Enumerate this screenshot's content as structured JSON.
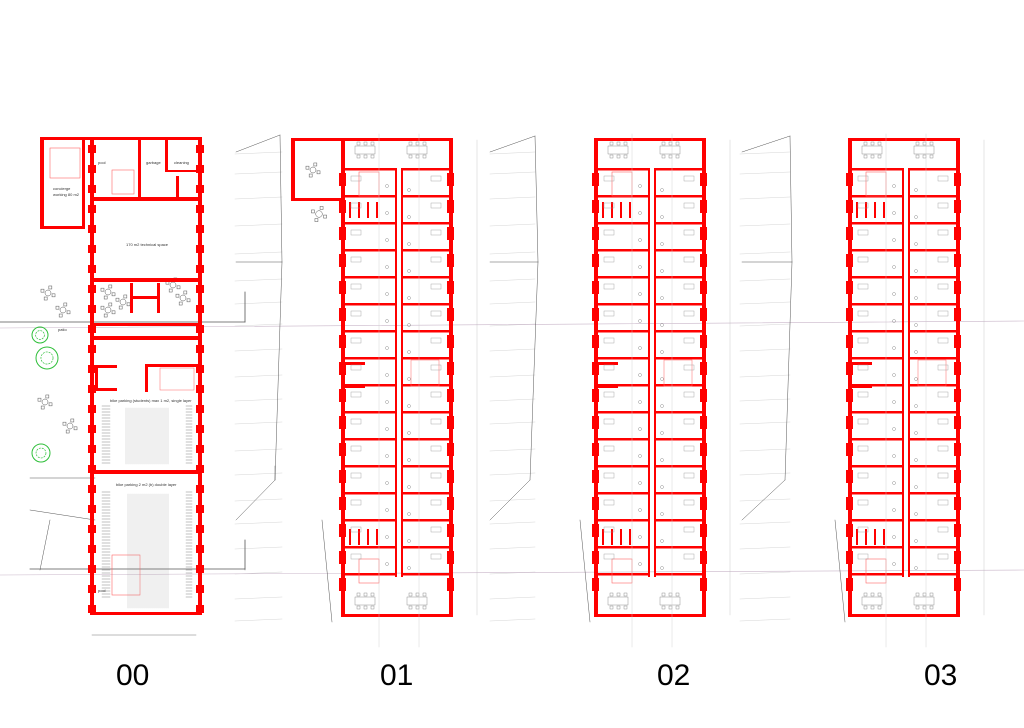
{
  "floors": [
    {
      "label": "00"
    },
    {
      "label": "01"
    },
    {
      "label": "02"
    },
    {
      "label": "03"
    }
  ],
  "ground_floor_rooms": {
    "concierge": "concierge",
    "concierge_sub": "working 80 m2",
    "pool": "pool",
    "garbage": "garbage",
    "cleaning": "cleaning",
    "technical": "170 m2 technical space",
    "patio": "patio",
    "bike_single": "bike parking (students) max 1 m2, single layer",
    "bike_double": "bike parking 2 m2 (b) double layer",
    "pool_bottom": "pool"
  },
  "colors": {
    "wall": "#ff0000",
    "thin_line": "#ff6666",
    "context": "#555555",
    "grid": "#c9b6c9",
    "tree": "#2fbf3a",
    "furniture": "#555555"
  }
}
